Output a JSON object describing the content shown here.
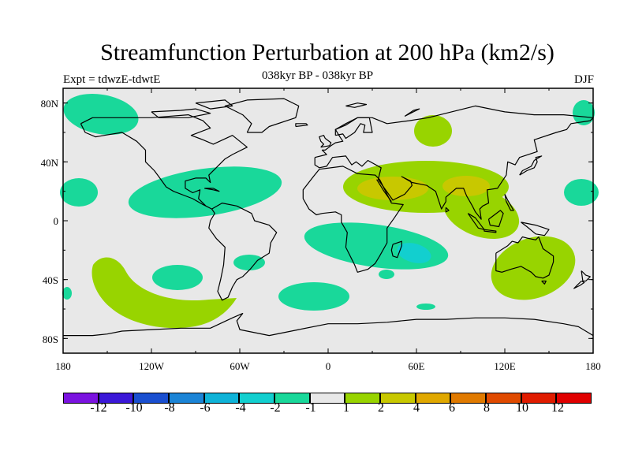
{
  "header": {
    "title": "Streamfunction Perturbation at 200 hPa (km2/s)",
    "left_string": "Expt = tdwzE-tdwtE",
    "center_string": "038kyr BP - 038kyr BP",
    "right_string": "DJF"
  },
  "axes": {
    "lat_labels": [
      "80N",
      "40N",
      "0",
      "40S",
      "80S"
    ],
    "lat_values": [
      80,
      40,
      0,
      -40,
      -80
    ],
    "lon_labels": [
      "180",
      "120W",
      "60W",
      "0",
      "60E",
      "120E",
      "180"
    ],
    "lon_values": [
      -180,
      -120,
      -60,
      0,
      60,
      120,
      180
    ],
    "lon_range": [
      -180,
      180
    ],
    "lat_range": [
      -90,
      90
    ]
  },
  "colorbar": {
    "labels": [
      "-12",
      "-10",
      "-8",
      "-6",
      "-4",
      "-2",
      "-1",
      "1",
      "2",
      "4",
      "6",
      "8",
      "10",
      "12"
    ],
    "colors": [
      "#7b13e0",
      "#3b18d8",
      "#1a4fd0",
      "#1b84d6",
      "#0fb3d8",
      "#12cfcf",
      "#19d89a",
      "#e8e8e8",
      "#98d400",
      "#c8c800",
      "#e0a800",
      "#e07a00",
      "#e04a00",
      "#e01c00",
      "#e00000"
    ]
  },
  "map_colors": {
    "ocean": "#e8e8e8",
    "neg_1": "#19d89a",
    "neg_2": "#12cfcf",
    "pos_1": "#98d400",
    "pos_2": "#c8c800",
    "coast": "#000000"
  },
  "chart_data": {
    "type": "map",
    "projection": "cylindrical equidistant",
    "field": "streamfunction perturbation",
    "units": "km2/s",
    "level_hPa": 200,
    "season": "DJF",
    "contour_levels": [
      -12,
      -10,
      -8,
      -6,
      -4,
      -2,
      -1,
      1,
      2,
      4,
      6,
      8,
      10,
      12
    ]
  }
}
